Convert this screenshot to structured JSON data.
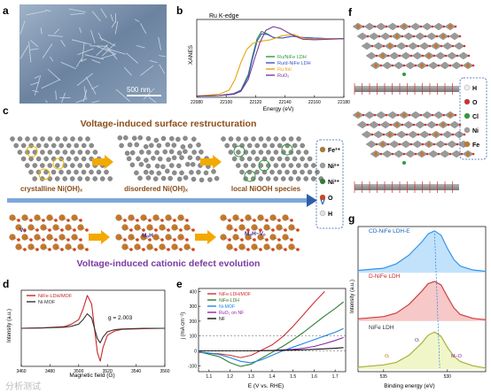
{
  "panel_letters": [
    "a",
    "b",
    "c",
    "d",
    "e",
    "f",
    "g"
  ],
  "panel_a": {
    "scale_bar": "500 nm"
  },
  "panel_b": {
    "title": "Ru K-edge",
    "ylabel": "XANES",
    "xlabel": "Energy (eV)",
    "legend": [
      "Ru/NiFe LDH",
      "Ru/d-NiFe LDH",
      "Ru foil",
      "RuO₂"
    ]
  },
  "panel_c": {
    "title_top": "Voltage-induced surface restructuration",
    "title_bottom": "Voltage-induced cationic defect evolution",
    "stage_labels": [
      "crystalline Ni(OH)ₓ",
      "disordered Ni(OH)ₓ",
      "local NiOOH species"
    ],
    "arrow_label": "V",
    "defect_labels": [
      "Vₒ",
      "MₒH",
      "MₒH−Vₒ"
    ],
    "legend": [
      "Fe³⁺",
      "Ni²⁺",
      "Ni³⁺",
      "O",
      "H"
    ]
  },
  "panel_d": {
    "legend": [
      "NiFe-LDH/MOF",
      "Ni-MOF"
    ],
    "annotation": "g = 2.003",
    "ylabel": "Intensity (a.u.)",
    "xlabel": "Magnetic field (G)"
  },
  "panel_e": {
    "legend": [
      "NiFe-LDH/MOF",
      "NiFe-LDH",
      "Ni-MOF",
      "RuO₂ on NF",
      "NF"
    ],
    "ylabel": "j (mA cm⁻²)",
    "xlabel": "E (V vs. RHE)"
  },
  "panel_f": {
    "legend": [
      "H",
      "O",
      "Cl",
      "Ni",
      "Fe"
    ]
  },
  "panel_g": {
    "sample_labels": [
      "CD-NiFe LDH-E",
      "D-NiFe LDH",
      "NiFe LDH"
    ],
    "peak_labels": [
      "Oᵢ",
      "Oₗ",
      "M–O"
    ],
    "ylabel": "Intensity (a.u.)",
    "xlabel": "Binding energy (eV)"
  },
  "watermark": "分析测试",
  "chart_data": [
    {
      "type": "line",
      "panel": "b",
      "title": "Ru K-edge",
      "xlabel": "Energy (eV)",
      "ylabel": "XANES",
      "x_ticks": [
        22080,
        22100,
        22120,
        22140,
        22160,
        22180
      ],
      "xlim": [
        22080,
        22180
      ],
      "ylim": [
        0,
        1.3
      ],
      "legend_position": "lower-right",
      "series": [
        {
          "name": "Ru/NiFe LDH",
          "color": "#2e9a3a",
          "x": [
            22080,
            22095,
            22105,
            22110,
            22115,
            22118,
            22121,
            22124,
            22128,
            22132,
            22138,
            22145,
            22152,
            22160,
            22170,
            22180
          ],
          "values": [
            0.02,
            0.03,
            0.06,
            0.12,
            0.38,
            0.7,
            0.98,
            1.1,
            1.06,
            1.0,
            0.99,
            1.02,
            1.0,
            0.99,
            0.98,
            0.98
          ]
        },
        {
          "name": "Ru/d-NiFe LDH",
          "color": "#3a53c9",
          "x": [
            22080,
            22095,
            22105,
            22110,
            22115,
            22118,
            22121,
            22124,
            22128,
            22132,
            22138,
            22145,
            22152,
            22160,
            22170,
            22180
          ],
          "values": [
            0.02,
            0.03,
            0.06,
            0.11,
            0.35,
            0.66,
            0.94,
            1.06,
            1.05,
            1.0,
            0.99,
            1.02,
            1.0,
            0.99,
            0.98,
            0.98
          ]
        },
        {
          "name": "Ru foil",
          "color": "#e8a30c",
          "x": [
            22080,
            22095,
            22102,
            22106,
            22110,
            22114,
            22118,
            22124,
            22130,
            22138,
            22146,
            22152,
            22160,
            22170,
            22180
          ],
          "values": [
            0.02,
            0.05,
            0.12,
            0.3,
            0.58,
            0.8,
            0.9,
            0.94,
            0.96,
            1.03,
            1.05,
            0.99,
            0.97,
            0.98,
            0.98
          ]
        },
        {
          "name": "RuO₂",
          "color": "#7a3a9a",
          "x": [
            22080,
            22095,
            22105,
            22110,
            22115,
            22119,
            22123,
            22127,
            22132,
            22137,
            22142,
            22147,
            22152,
            22160,
            22170,
            22180
          ],
          "values": [
            0.02,
            0.03,
            0.05,
            0.1,
            0.3,
            0.62,
            0.92,
            1.12,
            1.18,
            1.15,
            1.08,
            1.02,
            0.97,
            0.96,
            0.97,
            0.98
          ]
        }
      ]
    },
    {
      "type": "line",
      "panel": "d",
      "xlabel": "Magnetic field (G)",
      "ylabel": "Intensity (a.u.)",
      "x_ticks": [
        3460,
        3480,
        3500,
        3520,
        3540,
        3560
      ],
      "xlim": [
        3460,
        3560
      ],
      "annotation": "g = 2.003",
      "legend_position": "top-left",
      "series": [
        {
          "name": "NiFe-LDH/MOF",
          "color": "#c62828",
          "x": [
            3460,
            3475,
            3490,
            3495,
            3500,
            3503,
            3506,
            3509,
            3511,
            3513,
            3515,
            3517,
            3520,
            3525,
            3530,
            3545,
            3560
          ],
          "values": [
            0,
            0.01,
            0.05,
            0.12,
            0.25,
            0.55,
            0.95,
            0.7,
            0.0,
            -0.7,
            -0.95,
            -0.55,
            -0.2,
            -0.08,
            -0.03,
            -0.01,
            0
          ]
        },
        {
          "name": "Ni-MOF",
          "color": "#333333",
          "x": [
            3460,
            3475,
            3490,
            3495,
            3500,
            3503,
            3506,
            3509,
            3511,
            3513,
            3515,
            3517,
            3520,
            3525,
            3530,
            3545,
            3560
          ],
          "values": [
            0,
            0.01,
            0.03,
            0.06,
            0.12,
            0.25,
            0.42,
            0.3,
            0.0,
            -0.3,
            -0.42,
            -0.25,
            -0.1,
            -0.04,
            -0.02,
            0,
            0
          ]
        }
      ]
    },
    {
      "type": "line",
      "panel": "e",
      "xlabel": "E (V vs. RHE)",
      "ylabel": "j (mA cm⁻²)",
      "x_ticks": [
        1.1,
        1.2,
        1.3,
        1.4,
        1.5,
        1.6,
        1.7
      ],
      "y_ticks": [
        -100,
        0,
        100,
        200,
        300,
        400
      ],
      "xlim": [
        1.05,
        1.75
      ],
      "ylim": [
        -140,
        420
      ],
      "legend_position": "top-left",
      "series": [
        {
          "name": "NiFe-LDH/MOF",
          "color": "#d32f2f",
          "x": [
            1.05,
            1.15,
            1.2,
            1.25,
            1.3,
            1.35,
            1.4,
            1.45,
            1.5,
            1.55,
            1.6,
            1.65
          ],
          "values": [
            -10,
            -20,
            -30,
            -45,
            -30,
            5,
            40,
            95,
            165,
            245,
            325,
            400
          ]
        },
        {
          "name": "NiFe-LDH",
          "color": "#2e7d32",
          "x": [
            1.05,
            1.15,
            1.2,
            1.25,
            1.3,
            1.35,
            1.4,
            1.45,
            1.5,
            1.55,
            1.6,
            1.65,
            1.7,
            1.74
          ],
          "values": [
            -5,
            -40,
            -80,
            -105,
            -90,
            -50,
            -10,
            30,
            75,
            125,
            180,
            235,
            285,
            330
          ]
        },
        {
          "name": "Ni-MOF",
          "color": "#1e88e5",
          "x": [
            1.05,
            1.15,
            1.2,
            1.25,
            1.3,
            1.35,
            1.4,
            1.45,
            1.5,
            1.55,
            1.6,
            1.65,
            1.7,
            1.74
          ],
          "values": [
            -5,
            -25,
            -45,
            -70,
            -80,
            -60,
            -30,
            0,
            25,
            50,
            75,
            100,
            125,
            150
          ]
        },
        {
          "name": "RuO₂ on NF",
          "color": "#8e24aa",
          "x": [
            1.05,
            1.2,
            1.3,
            1.4,
            1.5,
            1.55,
            1.6,
            1.65,
            1.7,
            1.74
          ],
          "values": [
            0,
            0,
            0,
            3,
            10,
            18,
            30,
            48,
            70,
            90
          ]
        },
        {
          "name": "NF",
          "color": "#111111",
          "x": [
            1.05,
            1.2,
            1.3,
            1.4,
            1.5,
            1.6,
            1.7,
            1.74
          ],
          "values": [
            0,
            0,
            0,
            2,
            5,
            10,
            17,
            22
          ]
        }
      ]
    },
    {
      "type": "line",
      "panel": "g",
      "xlabel": "Binding energy (eV)",
      "ylabel": "Intensity (a.u.)",
      "x_ticks": [
        535,
        530
      ],
      "xlim": [
        537,
        527
      ],
      "series": [
        {
          "name": "CD-NiFe LDH-E",
          "color": "#1e88e5",
          "x": [
            537,
            535,
            534,
            533,
            532,
            531.5,
            531,
            530.5,
            530,
            529.5,
            529,
            528,
            527
          ],
          "values": [
            0.05,
            0.1,
            0.2,
            0.4,
            0.7,
            0.88,
            0.95,
            0.85,
            0.55,
            0.3,
            0.15,
            0.06,
            0.03
          ]
        },
        {
          "name": "D-NiFe LDH",
          "color": "#c62828",
          "x": [
            537,
            535,
            534,
            533,
            532,
            531.5,
            531,
            530.5,
            530,
            529.5,
            529,
            528,
            527
          ],
          "values": [
            0.05,
            0.1,
            0.18,
            0.38,
            0.68,
            0.85,
            0.9,
            0.82,
            0.55,
            0.3,
            0.15,
            0.06,
            0.03
          ]
        },
        {
          "name": "NiFe LDH",
          "color": "#9e9d24",
          "x": [
            537,
            535,
            534,
            533,
            532,
            531.5,
            531,
            530.5,
            530,
            529.5,
            529,
            528,
            527
          ],
          "values": [
            0.05,
            0.1,
            0.16,
            0.32,
            0.6,
            0.78,
            0.85,
            0.75,
            0.5,
            0.3,
            0.18,
            0.08,
            0.03
          ]
        }
      ]
    }
  ]
}
